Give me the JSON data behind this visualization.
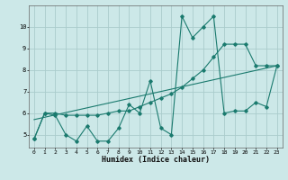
{
  "title": "",
  "xlabel": "Humidex (Indice chaleur)",
  "ylabel": "",
  "background_color": "#cce8e8",
  "grid_color": "#aacccc",
  "line_color": "#1a7a6e",
  "series1_x": [
    0,
    1,
    2,
    3,
    4,
    5,
    6,
    7,
    8,
    9,
    10,
    11,
    12,
    13,
    14,
    15,
    16,
    17,
    18,
    19,
    20,
    21,
    22,
    23
  ],
  "series1_y": [
    4.8,
    6.0,
    5.9,
    5.0,
    4.7,
    5.4,
    4.7,
    4.7,
    5.3,
    6.4,
    6.0,
    7.5,
    5.3,
    5.0,
    10.5,
    9.5,
    10.0,
    10.5,
    6.0,
    6.1,
    6.1,
    6.5,
    6.3,
    8.2
  ],
  "series2_x": [
    0,
    1,
    2,
    3,
    4,
    5,
    6,
    7,
    8,
    9,
    10,
    11,
    12,
    13,
    14,
    15,
    16,
    17,
    18,
    19,
    20,
    21,
    22,
    23
  ],
  "series2_y": [
    4.8,
    6.0,
    6.0,
    5.9,
    5.9,
    5.9,
    5.9,
    6.0,
    6.1,
    6.1,
    6.3,
    6.5,
    6.7,
    6.9,
    7.2,
    7.6,
    8.0,
    8.6,
    9.2,
    9.2,
    9.2,
    8.2,
    8.2,
    8.2
  ],
  "series3_x": [
    0,
    23
  ],
  "series3_y": [
    5.7,
    8.2
  ],
  "ylim": [
    4.4,
    11.0
  ],
  "xlim": [
    -0.5,
    23.5
  ],
  "yticks": [
    5,
    6,
    7,
    8,
    9,
    10
  ],
  "xticks": [
    0,
    1,
    2,
    3,
    4,
    5,
    6,
    7,
    8,
    9,
    10,
    11,
    12,
    13,
    14,
    15,
    16,
    17,
    18,
    19,
    20,
    21,
    22,
    23
  ],
  "figsize": [
    3.2,
    2.0
  ],
  "dpi": 100
}
